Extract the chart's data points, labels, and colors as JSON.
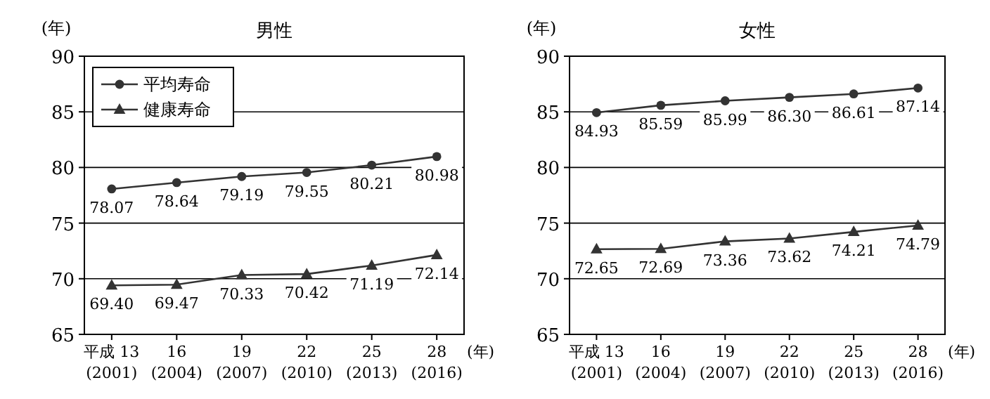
{
  "chart_data": [
    {
      "type": "line",
      "title": "男性",
      "ylabel": "(年)",
      "xlabel": "(年)",
      "categories": [
        "平成 13\n(2001)",
        "16\n(2004)",
        "19\n(2007)",
        "22\n(2010)",
        "25\n(2013)",
        "28\n(2016)"
      ],
      "series": [
        {
          "name": "平均寿命",
          "color": "#333333",
          "marker": "circle",
          "values": [
            78.07,
            78.64,
            79.19,
            79.55,
            80.21,
            80.98
          ],
          "value_labels": [
            "78.07",
            "78.64",
            "79.19",
            "79.55",
            "80.21",
            "80.98"
          ]
        },
        {
          "name": "健康寿命",
          "color": "#333333",
          "marker": "triangle",
          "values": [
            69.4,
            69.47,
            70.33,
            70.42,
            71.19,
            72.14
          ],
          "value_labels": [
            "69.40",
            "69.47",
            "70.33",
            "70.42",
            "71.19",
            "72.14"
          ]
        }
      ],
      "ylim": [
        65,
        90
      ],
      "yticks": [
        65,
        70,
        75,
        80,
        85,
        90
      ],
      "grid": "y",
      "legend": "top left"
    },
    {
      "type": "line",
      "title": "女性",
      "ylabel": "(年)",
      "xlabel": "(年)",
      "categories": [
        "平成 13\n(2001)",
        "16\n(2004)",
        "19\n(2007)",
        "22\n(2010)",
        "25\n(2013)",
        "28\n(2016)"
      ],
      "series": [
        {
          "color": "#333333",
          "marker": "circle",
          "values": [
            84.93,
            85.59,
            85.99,
            86.3,
            86.61,
            87.14
          ],
          "value_labels": [
            "84.93",
            "85.59",
            "85.99",
            "86.30",
            "86.61",
            "87.14"
          ]
        },
        {
          "color": "#333333",
          "marker": "triangle",
          "values": [
            72.65,
            72.69,
            73.36,
            73.62,
            74.21,
            74.79
          ],
          "value_labels": [
            "72.65",
            "72.69",
            "73.36",
            "73.62",
            "74.21",
            "74.79"
          ]
        }
      ],
      "ylim": [
        65,
        90
      ],
      "yticks": [
        65,
        70,
        75,
        80,
        85,
        90
      ],
      "grid": "y",
      "legend": false
    }
  ]
}
